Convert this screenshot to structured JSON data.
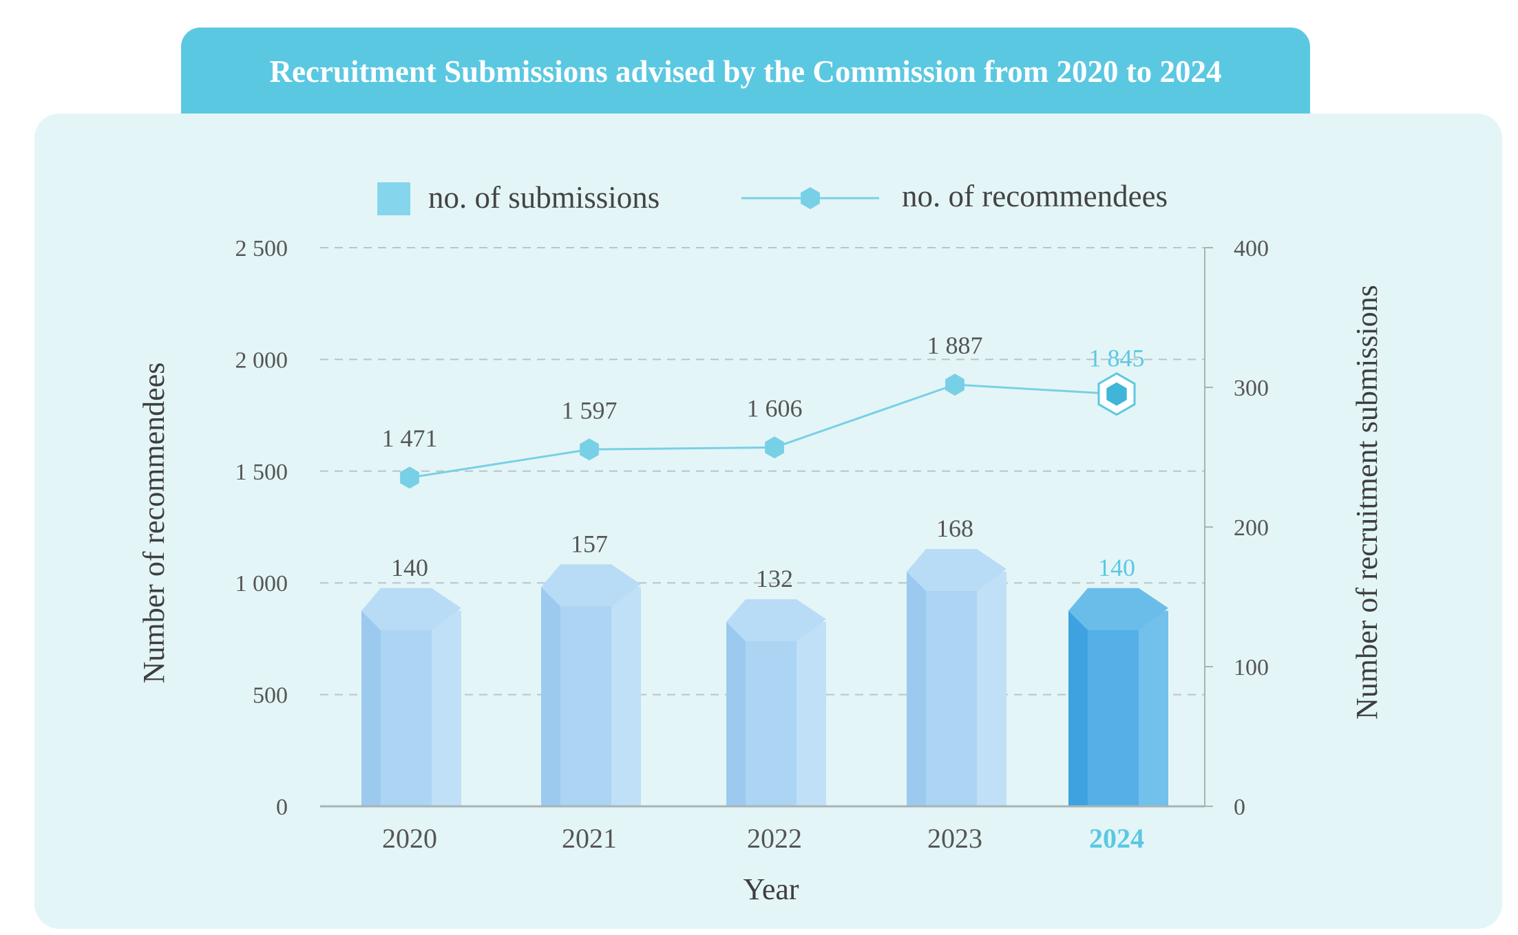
{
  "title": "Recruitment Submissions advised by the Commission from 2020 to 2024",
  "legend": {
    "bar_label": "no. of submissions",
    "line_label": "no. of recommendees"
  },
  "colors": {
    "title_bg": "#5bc8e2",
    "panel_bg": "#e4f5f7",
    "bar": "#a9d4f2",
    "bar_highlight": "#4eaee6",
    "line": "#78d0e6",
    "highlight_text": "#5bc8e2"
  },
  "chart_data": {
    "type": "bar+line",
    "categories": [
      "2020",
      "2021",
      "2022",
      "2023",
      "2024"
    ],
    "highlight_category": "2024",
    "series": [
      {
        "name": "no. of submissions",
        "type": "bar",
        "axis": "right",
        "values": [
          140,
          157,
          132,
          168,
          140
        ],
        "labels": [
          "140",
          "157",
          "132",
          "168",
          "140"
        ]
      },
      {
        "name": "no. of recommendees",
        "type": "line",
        "axis": "left",
        "values": [
          1471,
          1597,
          1606,
          1887,
          1845
        ],
        "labels": [
          "1 471",
          "1 597",
          "1 606",
          "1 887",
          "1 845"
        ]
      }
    ],
    "xlabel": "Year",
    "ylabel_left": "Number of recommendees",
    "ylabel_right": "Number of recruitment submissions",
    "ylim_left": [
      0,
      2500
    ],
    "ylim_right": [
      0,
      400
    ],
    "yticks_left": [
      "0",
      "500",
      "1 000",
      "1 500",
      "2 000",
      "2 500"
    ],
    "yticks_right": [
      "0",
      "100",
      "200",
      "300",
      "400"
    ],
    "grid": "dashed-horizontal",
    "legend_position": "top"
  }
}
